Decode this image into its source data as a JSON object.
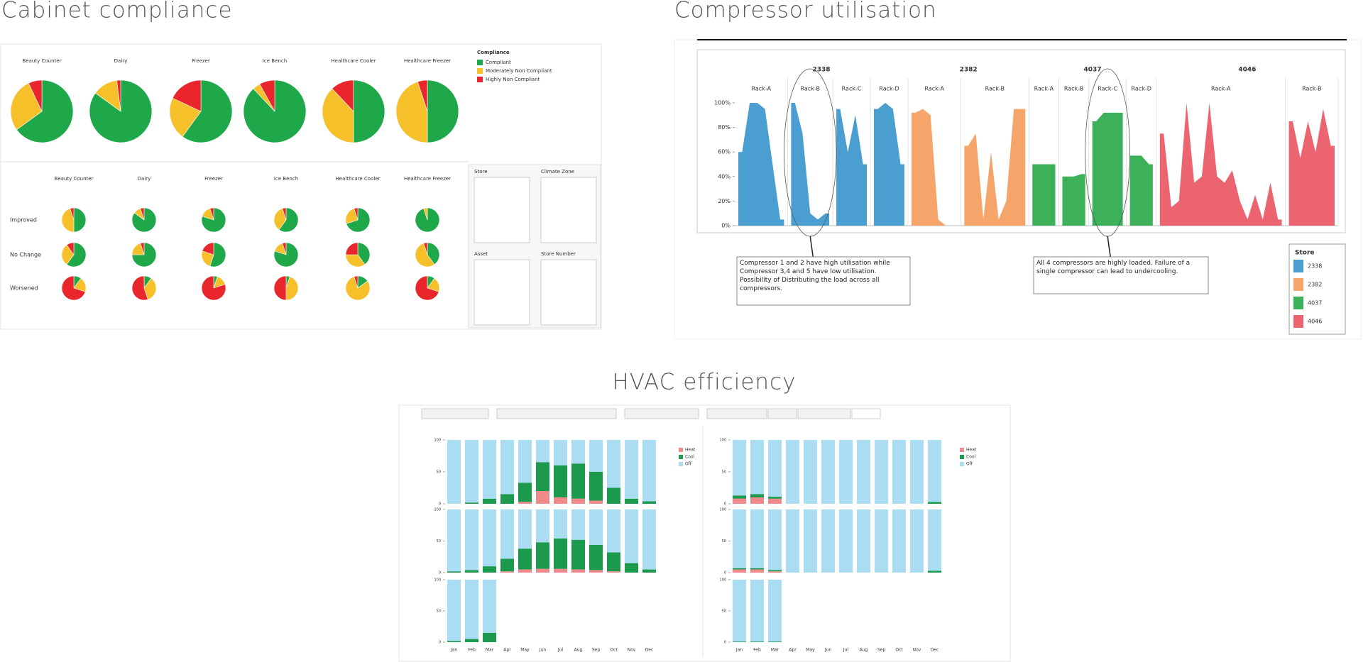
{
  "chart_data": [
    {
      "type": "pie",
      "title": "Cabinet compliance",
      "legend_title": "Compliance",
      "labels": [
        "Compliant",
        "Moderately Non Compliant",
        "Highly Non Compliant"
      ],
      "colors": [
        "#1ea84a",
        "#f5c02a",
        "#e8262b"
      ],
      "groups": [
        "Beauty Counter",
        "Dairy",
        "Freezer",
        "Ice Bench",
        "Healthcare Cooler",
        "Healthcare Freezer"
      ],
      "pies": [
        [
          65,
          28,
          7
        ],
        [
          85,
          13,
          2
        ],
        [
          60,
          22,
          18
        ],
        [
          88,
          4,
          8
        ],
        [
          50,
          38,
          12
        ],
        [
          50,
          45,
          5
        ]
      ],
      "row_labels": [
        "Improved",
        "No Change",
        "Worsened"
      ],
      "small_pies": [
        [
          [
            50,
            45,
            5
          ],
          [
            85,
            10,
            5
          ],
          [
            80,
            15,
            5
          ],
          [
            60,
            35,
            5
          ],
          [
            70,
            25,
            5
          ],
          [
            95,
            5,
            0
          ]
        ],
        [
          [
            60,
            30,
            10
          ],
          [
            75,
            20,
            5
          ],
          [
            55,
            25,
            20
          ],
          [
            80,
            15,
            5
          ],
          [
            40,
            35,
            25
          ],
          [
            40,
            55,
            5
          ]
        ],
        [
          [
            10,
            20,
            70
          ],
          [
            10,
            35,
            55
          ],
          [
            5,
            15,
            80
          ],
          [
            5,
            45,
            50
          ],
          [
            15,
            80,
            5
          ],
          [
            10,
            20,
            70
          ]
        ]
      ],
      "filters": [
        "Store",
        "Climate Zone",
        "Asset",
        "Store Number"
      ]
    },
    {
      "type": "area",
      "title": "Compressor utilisation",
      "ylim": [
        0,
        100
      ],
      "yticks": [
        {
          "value": 0,
          "label": "0%"
        },
        {
          "value": 20,
          "label": "20%"
        },
        {
          "value": 40,
          "label": "40%"
        },
        {
          "value": 60,
          "label": "60%"
        },
        {
          "value": 80,
          "label": "80%"
        },
        {
          "value": 100,
          "label": "100%"
        }
      ],
      "legend_title": "Store",
      "stores": [
        {
          "name": "2338",
          "color": "#4a9fd0"
        },
        {
          "name": "2382",
          "color": "#f5a56a"
        },
        {
          "name": "4037",
          "color": "#3cb15a"
        },
        {
          "name": "4046",
          "color": "#eb6470"
        }
      ],
      "racks": [
        {
          "store": 0,
          "name": "Rack-A",
          "values": [
            60,
            100,
            100,
            95,
            50,
            5
          ]
        },
        {
          "store": 0,
          "name": "Rack-B",
          "values": [
            100,
            75,
            10,
            5,
            10
          ]
        },
        {
          "store": 0,
          "name": "Rack-C",
          "values": [
            95,
            60,
            90,
            50
          ]
        },
        {
          "store": 0,
          "name": "Rack-D",
          "values": [
            95,
            100,
            95,
            50
          ]
        },
        {
          "store": 1,
          "name": "Rack-A",
          "values": [
            92,
            95,
            90,
            5,
            0,
            0
          ]
        },
        {
          "store": 1,
          "name": "Rack-B",
          "values": [
            65,
            75,
            5,
            60,
            5,
            20,
            95,
            95
          ]
        },
        {
          "store": 2,
          "name": "Rack-A",
          "values": [
            50,
            50,
            50
          ]
        },
        {
          "store": 2,
          "name": "Rack-B",
          "values": [
            40,
            40,
            42
          ]
        },
        {
          "store": 2,
          "name": "Rack-C",
          "values": [
            85,
            92,
            92,
            92
          ]
        },
        {
          "store": 2,
          "name": "Rack-D",
          "values": [
            57,
            57,
            50
          ]
        },
        {
          "store": 3,
          "name": "Rack-A",
          "values": [
            75,
            15,
            20,
            100,
            35,
            40,
            100,
            40,
            35,
            45,
            20,
            5,
            25,
            5,
            35,
            5
          ]
        },
        {
          "store": 3,
          "name": "Rack-B",
          "values": [
            85,
            55,
            85,
            60,
            95,
            65
          ]
        }
      ],
      "annotations": [
        "Compressor 1 and 2 have high utilisation while Compressor 3,4 and 5 have low utilisation. Possibility of Distributing the load across all compressors.",
        "All 4 compressors are highly loaded. Failure of a single compressor can lead to undercooling."
      ]
    },
    {
      "type": "stacked-bar",
      "title": "HVAC efficiency",
      "categories": [
        "Jan",
        "Feb",
        "Mar",
        "Apr",
        "May",
        "Jun",
        "Jul",
        "Aug",
        "Sep",
        "Oct",
        "Nov",
        "Dec"
      ],
      "legend": [
        {
          "name": "Heat",
          "color": "#f08a8a"
        },
        {
          "name": "Cool",
          "color": "#1b9a4e"
        },
        {
          "name": "Off",
          "color": "#aadcf2"
        }
      ],
      "ylim": [
        0,
        100
      ],
      "yticks": [
        0,
        50,
        100
      ],
      "panels": [
        {
          "rows": [
            {
              "series": [
                {
                  "values": [
                    0,
                    0,
                    0,
                    0,
                    3,
                    20,
                    10,
                    8,
                    5,
                    0,
                    0,
                    0
                  ]
                },
                {
                  "values": [
                    0,
                    2,
                    8,
                    15,
                    30,
                    45,
                    50,
                    55,
                    45,
                    25,
                    8,
                    4
                  ]
                },
                {
                  "values": [
                    100,
                    98,
                    92,
                    85,
                    67,
                    35,
                    40,
                    37,
                    50,
                    75,
                    92,
                    96
                  ]
                }
              ]
            },
            {
              "series": [
                {
                  "values": [
                    0,
                    0,
                    0,
                    2,
                    5,
                    6,
                    6,
                    5,
                    4,
                    2,
                    0,
                    0
                  ]
                },
                {
                  "values": [
                    2,
                    4,
                    10,
                    20,
                    33,
                    42,
                    48,
                    47,
                    40,
                    30,
                    15,
                    5
                  ]
                },
                {
                  "values": [
                    98,
                    96,
                    90,
                    78,
                    62,
                    52,
                    46,
                    48,
                    56,
                    68,
                    85,
                    95
                  ]
                }
              ]
            },
            {
              "series": [
                {
                  "values": [
                    0,
                    0,
                    0
                  ]
                },
                {
                  "values": [
                    2,
                    5,
                    15
                  ]
                },
                {
                  "values": [
                    98,
                    95,
                    85
                  ]
                }
              ]
            }
          ]
        },
        {
          "rows": [
            {
              "series": [
                {
                  "values": [
                    8,
                    10,
                    8,
                    0,
                    0,
                    0,
                    0,
                    0,
                    0,
                    0,
                    0,
                    0
                  ]
                },
                {
                  "values": [
                    5,
                    5,
                    3,
                    0,
                    0,
                    0,
                    0,
                    0,
                    0,
                    0,
                    0,
                    3
                  ]
                },
                {
                  "values": [
                    87,
                    85,
                    89,
                    100,
                    100,
                    100,
                    100,
                    100,
                    100,
                    100,
                    100,
                    97
                  ]
                }
              ]
            },
            {
              "series": [
                {
                  "values": [
                    5,
                    5,
                    2,
                    0,
                    0,
                    0,
                    0,
                    0,
                    0,
                    0,
                    0,
                    0
                  ]
                },
                {
                  "values": [
                    2,
                    2,
                    2,
                    0,
                    0,
                    0,
                    0,
                    0,
                    0,
                    0,
                    0,
                    3
                  ]
                },
                {
                  "values": [
                    93,
                    93,
                    96,
                    100,
                    100,
                    100,
                    100,
                    100,
                    100,
                    100,
                    100,
                    97
                  ]
                }
              ]
            },
            {
              "series": [
                {
                  "values": [
                    0,
                    0,
                    0
                  ]
                },
                {
                  "values": [
                    1,
                    1,
                    1
                  ]
                },
                {
                  "values": [
                    99,
                    99,
                    99
                  ]
                }
              ]
            }
          ]
        }
      ]
    }
  ]
}
